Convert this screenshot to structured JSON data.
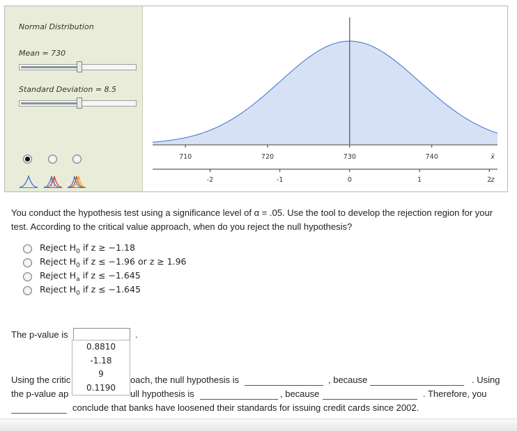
{
  "tool": {
    "title": "Normal Distribution",
    "mean_label": "Mean = 730",
    "sd_label": "Standard Deviation = 8.5",
    "mean_slider_level": 0.51,
    "sd_slider_level": 0.51,
    "selected_mode": 0,
    "icon_colors": [
      "#3b6fd6",
      "#d23b2b",
      "#f0a010"
    ]
  },
  "chart_data": {
    "type": "area",
    "mean": 730,
    "sd": 8.5,
    "xlim": [
      706,
      748
    ],
    "x_ticks": [
      "710",
      "720",
      "730",
      "740"
    ],
    "x_tick_values": [
      710,
      720,
      730,
      740
    ],
    "x_axis_symbol": "x̄",
    "z_ticks": [
      "-2",
      "-1",
      "0",
      "1",
      "2"
    ],
    "z_tick_values": [
      -2,
      -1,
      0,
      1,
      2
    ],
    "z_axis_symbol": "z",
    "fill_color": "#d6e1f6",
    "line_color": "#3a6fcf"
  },
  "question": {
    "text": "You conduct the hypothesis test using a significance level of α = .05. Use the tool to develop the rejection region for your test. According to the critical value approach, when do you reject the null hypothesis?"
  },
  "options": [
    {
      "pre": "Reject H",
      "sub": "0",
      "post": " if z ≥ −1.18"
    },
    {
      "pre": "Reject H",
      "sub": "0",
      "post": " if z ≤ −1.96 or z ≥ 1.96"
    },
    {
      "pre": "Reject H",
      "sub": "a",
      "post": " if z ≤ −1.645"
    },
    {
      "pre": "Reject H",
      "sub": "0",
      "post": " if z ≤ −1.645"
    }
  ],
  "pvalue": {
    "label": "The p-value is",
    "period": ".",
    "dropdown_options": [
      "0.8810",
      "-1.18",
      "9",
      "0.1190"
    ]
  },
  "sentences": {
    "l1_start": "Using the critic",
    "l1_mid": "oach, the null hypothesis is",
    "l1_because": ", because",
    "l1_end": ". Using",
    "l2_start": "the p-value ap",
    "l2_mid": "ull hypothesis is",
    "l2_because": ", because",
    "l2_end": ". Therefore, you",
    "l3_end": "conclude that banks have loosened their standards for issuing credit cards since 2002."
  }
}
